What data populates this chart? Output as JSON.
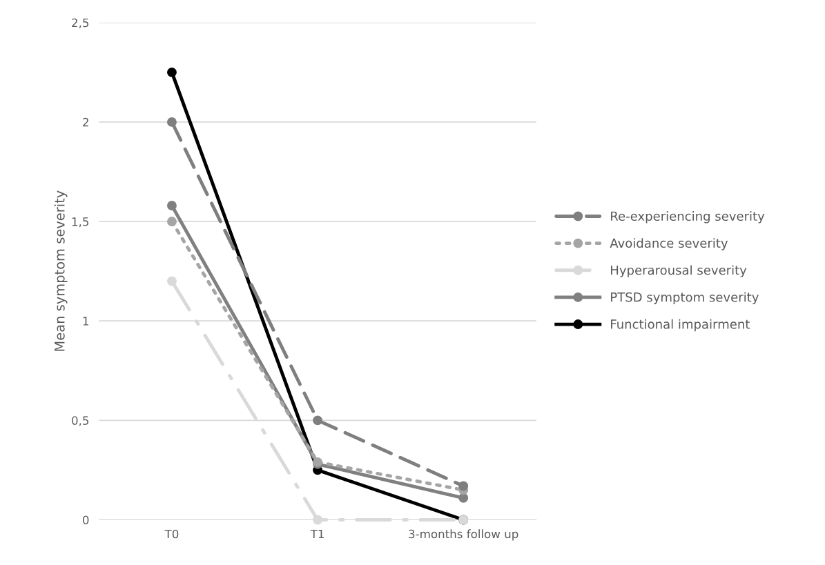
{
  "chart_data": {
    "type": "line",
    "ylabel": "Mean symptom severity",
    "categories": [
      "T0",
      "T1",
      "3-months follow up"
    ],
    "series": [
      {
        "name": "Re-experiencing severity",
        "color": "#7f7f7f",
        "line_style": "dashed",
        "values": [
          2.0,
          0.5,
          0.17
        ]
      },
      {
        "name": "Avoidance severity",
        "color": "#a5a5a5",
        "line_style": "dotted",
        "values": [
          1.5,
          0.29,
          0.15
        ]
      },
      {
        "name": "Hyperarousal severity",
        "color": "#d9d9d9",
        "line_style": "dashdot",
        "values": [
          1.2,
          0,
          0
        ]
      },
      {
        "name": "PTSD symptom severity",
        "color": "#808080",
        "line_style": "solid",
        "values": [
          1.58,
          0.28,
          0.11
        ]
      },
      {
        "name": "Functional impairment",
        "color": "#000000",
        "line_style": "solid",
        "values": [
          2.25,
          0.25,
          0
        ]
      }
    ],
    "ylim": [
      0,
      2.5
    ],
    "yticks": [
      0,
      {
        "value": 0.5,
        "label": "0,5"
      },
      1,
      {
        "value": 1.5,
        "label": "1,5"
      },
      2,
      {
        "value": 2.5,
        "label": "2,5"
      }
    ],
    "grid": "y",
    "legend": "right",
    "marker": "circle"
  }
}
